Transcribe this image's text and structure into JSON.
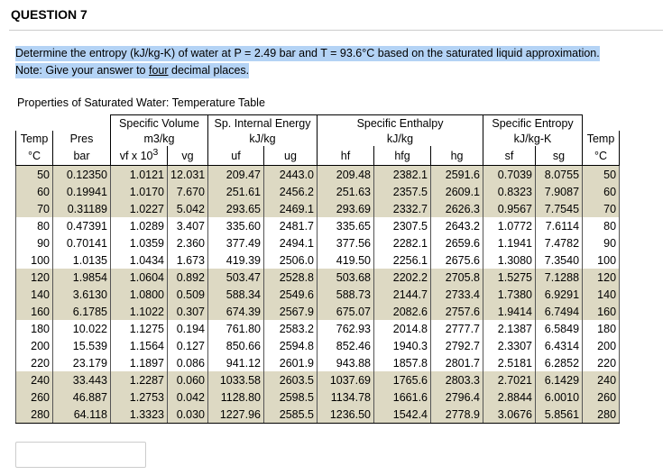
{
  "header": {
    "title": "QUESTION 7"
  },
  "question": {
    "text": "Determine the entropy (kJ/kg-K) of water at P = 2.49 bar and T = 93.6°C based on the saturated liquid approximation.",
    "note": [
      "Note: Give your answer to ",
      "four",
      " decimal places."
    ]
  },
  "table": {
    "caption": "Properties of Saturated Water: Temperature Table",
    "group_headers": [
      "Specific Volume",
      "Sp. Internal Energy",
      "Specific Enthalpy",
      "Specific Entropy"
    ],
    "unit_headers": [
      "Temp",
      "Pres",
      "m3/kg",
      "kJ/kg",
      "kJ/kg",
      "kJ/kg-K",
      "Temp"
    ],
    "column_headers": [
      "°C",
      "bar",
      "vf x 10",
      "vg",
      "uf",
      "ug",
      "hf",
      "hfg",
      "hg",
      "sf",
      "sg",
      "°C"
    ],
    "vf_exponent": "3",
    "rows": [
      [
        "50",
        "0.12350",
        "1.0121",
        "12.031",
        "209.47",
        "2443.0",
        "209.48",
        "2382.1",
        "2591.6",
        "0.7039",
        "8.0755",
        "50"
      ],
      [
        "60",
        "0.19941",
        "1.0170",
        "7.670",
        "251.61",
        "2456.2",
        "251.63",
        "2357.5",
        "2609.1",
        "0.8323",
        "7.9087",
        "60"
      ],
      [
        "70",
        "0.31189",
        "1.0227",
        "5.042",
        "293.65",
        "2469.1",
        "293.69",
        "2332.7",
        "2626.3",
        "0.9567",
        "7.7545",
        "70"
      ],
      [
        "80",
        "0.47391",
        "1.0289",
        "3.407",
        "335.60",
        "2481.7",
        "335.65",
        "2307.5",
        "2643.2",
        "1.0772",
        "7.6114",
        "80"
      ],
      [
        "90",
        "0.70141",
        "1.0359",
        "2.360",
        "377.49",
        "2494.1",
        "377.56",
        "2282.1",
        "2659.6",
        "1.1941",
        "7.4782",
        "90"
      ],
      [
        "100",
        "1.0135",
        "1.0434",
        "1.673",
        "419.39",
        "2506.0",
        "419.50",
        "2256.1",
        "2675.6",
        "1.3080",
        "7.3540",
        "100"
      ],
      [
        "120",
        "1.9854",
        "1.0604",
        "0.892",
        "503.47",
        "2528.8",
        "503.68",
        "2202.2",
        "2705.8",
        "1.5275",
        "7.1288",
        "120"
      ],
      [
        "140",
        "3.6130",
        "1.0800",
        "0.509",
        "588.34",
        "2549.6",
        "588.73",
        "2144.7",
        "2733.4",
        "1.7380",
        "6.9291",
        "140"
      ],
      [
        "160",
        "6.1785",
        "1.1022",
        "0.307",
        "674.39",
        "2567.9",
        "675.07",
        "2082.6",
        "2757.6",
        "1.9414",
        "6.7494",
        "160"
      ],
      [
        "180",
        "10.022",
        "1.1275",
        "0.194",
        "761.80",
        "2583.2",
        "762.93",
        "2014.8",
        "2777.7",
        "2.1387",
        "6.5849",
        "180"
      ],
      [
        "200",
        "15.539",
        "1.1564",
        "0.127",
        "850.66",
        "2594.8",
        "852.46",
        "1940.3",
        "2792.7",
        "2.3307",
        "6.4314",
        "200"
      ],
      [
        "220",
        "23.179",
        "1.1897",
        "0.086",
        "941.12",
        "2601.9",
        "943.88",
        "1857.8",
        "2801.7",
        "2.5181",
        "6.2852",
        "220"
      ],
      [
        "240",
        "33.443",
        "1.2287",
        "0.060",
        "1033.58",
        "2603.5",
        "1037.69",
        "1765.6",
        "2803.3",
        "2.7021",
        "6.1429",
        "240"
      ],
      [
        "260",
        "46.887",
        "1.2753",
        "0.042",
        "1128.80",
        "2598.5",
        "1134.78",
        "1661.6",
        "2796.4",
        "2.8844",
        "6.0010",
        "260"
      ],
      [
        "280",
        "64.118",
        "1.3323",
        "0.030",
        "1227.96",
        "2585.5",
        "1236.50",
        "1542.4",
        "2778.9",
        "3.0676",
        "5.8561",
        "280"
      ]
    ]
  }
}
